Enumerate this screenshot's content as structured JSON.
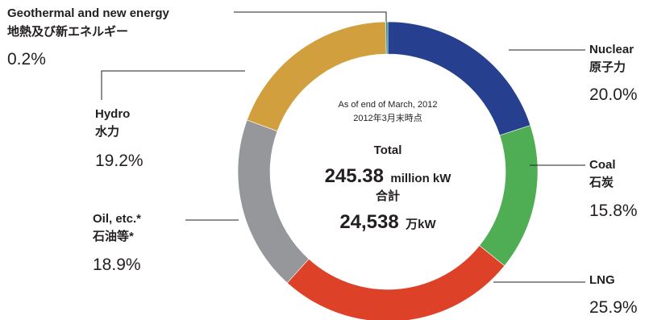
{
  "chart_data": {
    "type": "pie",
    "center": {
      "note_en": "As of end of March, 2012",
      "note_ja": "2012年3月末時点",
      "total_label": "Total",
      "total_value": "245.38",
      "total_unit": "million kW",
      "total_label_ja": "合計",
      "total_value_ja": "24,538",
      "total_unit_ja": "万kW"
    },
    "slices": [
      {
        "name": "Nuclear",
        "name_ja": "原子力",
        "value": 20.0,
        "label": "20.0%",
        "color": "#263f8f"
      },
      {
        "name": "Coal",
        "name_ja": "石炭",
        "value": 15.8,
        "label": "15.8%",
        "color": "#4fad53"
      },
      {
        "name": "LNG",
        "name_ja": "",
        "value": 25.9,
        "label": "25.9%",
        "color": "#dd4127"
      },
      {
        "name": "Oil, etc.*",
        "name_ja": "石油等*",
        "value": 18.9,
        "label": "18.9%",
        "color": "#95979a"
      },
      {
        "name": "Hydro",
        "name_ja": "水力",
        "value": 19.2,
        "label": "19.2%",
        "color": "#d19f3d"
      },
      {
        "name": "Geothermal and new energy",
        "name_ja": "地熱及び新エネルギー",
        "value": 0.2,
        "label": "0.2%",
        "color": "#0d8f9a"
      }
    ]
  }
}
